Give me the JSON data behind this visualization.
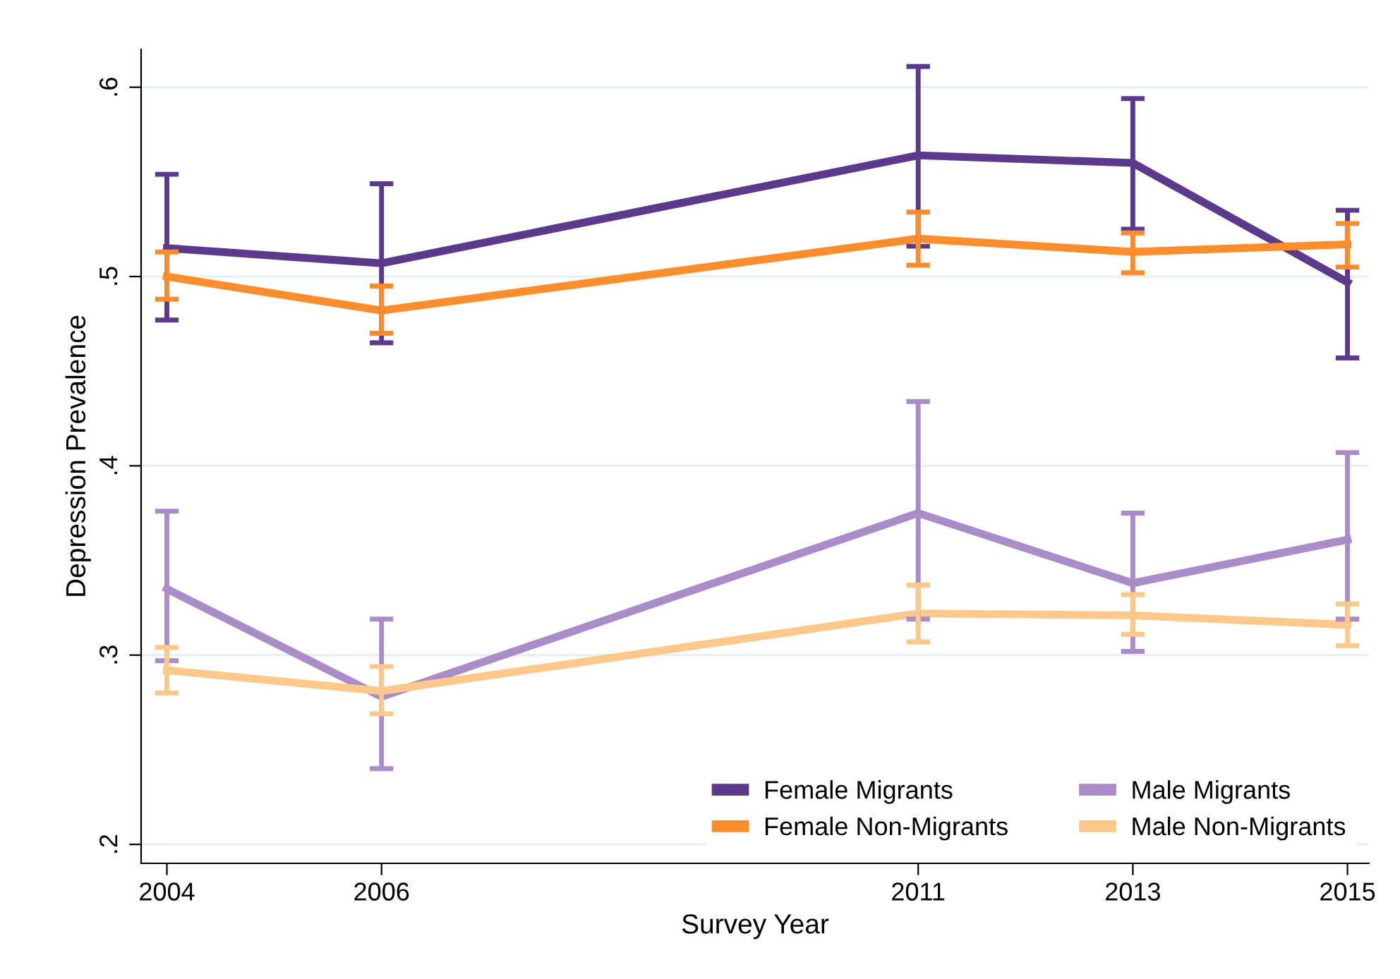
{
  "chart_data": {
    "type": "line",
    "xlabel": "Survey Year",
    "ylabel": "Depression Prevalence",
    "x": [
      2004,
      2006,
      2011,
      2013,
      2015
    ],
    "series": [
      {
        "name": "Female Migrants",
        "color": "#5b3a8e",
        "values": [
          0.515,
          0.507,
          0.564,
          0.56,
          0.497
        ],
        "errors": [
          [
            0.477,
            0.554
          ],
          [
            0.465,
            0.549
          ],
          [
            0.516,
            0.611
          ],
          [
            0.525,
            0.594
          ],
          [
            0.457,
            0.535
          ]
        ]
      },
      {
        "name": "Female Non-Migrants",
        "color": "#fd8d2b",
        "values": [
          0.5,
          0.482,
          0.52,
          0.513,
          0.517
        ],
        "errors": [
          [
            0.488,
            0.513
          ],
          [
            0.47,
            0.495
          ],
          [
            0.506,
            0.534
          ],
          [
            0.502,
            0.523
          ],
          [
            0.505,
            0.528
          ]
        ]
      },
      {
        "name": "Male Migrants",
        "color": "#a98cc8",
        "values": [
          0.335,
          0.278,
          0.375,
          0.338,
          0.361
        ],
        "errors": [
          [
            0.297,
            0.376
          ],
          [
            0.24,
            0.319
          ],
          [
            0.319,
            0.434
          ],
          [
            0.302,
            0.375
          ],
          [
            0.319,
            0.407
          ]
        ]
      },
      {
        "name": "Male Non-Migrants",
        "color": "#fdc98a",
        "values": [
          0.292,
          0.281,
          0.322,
          0.321,
          0.316
        ],
        "errors": [
          [
            0.28,
            0.304
          ],
          [
            0.269,
            0.294
          ],
          [
            0.307,
            0.337
          ],
          [
            0.311,
            0.332
          ],
          [
            0.305,
            0.327
          ]
        ]
      }
    ],
    "xlim": [
      2003.76,
      2015.2
    ],
    "xticks": [
      2004,
      2006,
      2011,
      2013,
      2015
    ],
    "ylim": [
      0.19,
      0.62
    ],
    "yticks": [
      {
        "value": 0.2,
        "label": ".2"
      },
      {
        "value": 0.3,
        "label": ".3"
      },
      {
        "value": 0.4,
        "label": ".4"
      },
      {
        "value": 0.5,
        "label": ".5"
      },
      {
        "value": 0.6,
        "label": ".6"
      }
    ],
    "grid": "y",
    "legend": "bottom right",
    "marker": "none",
    "line_style": "solid"
  }
}
